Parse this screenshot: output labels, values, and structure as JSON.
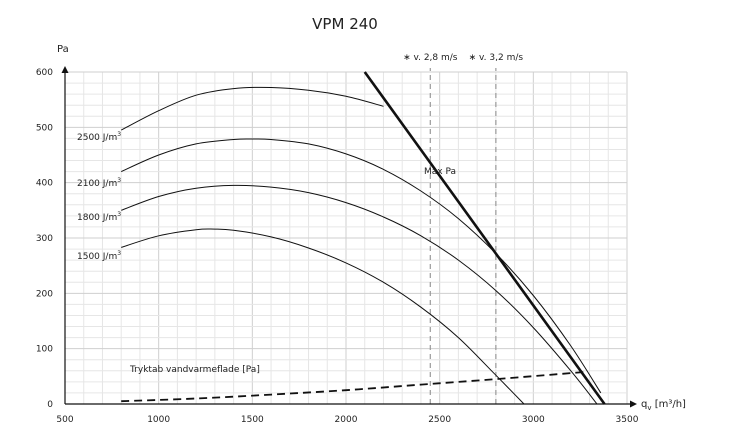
{
  "chart_data": {
    "type": "line",
    "title": "VPM 240",
    "xlabel": "q",
    "xlabel_sub": "v",
    "xlabel_unit": " [m³/h]",
    "ylabel": "Pa",
    "xlim": [
      500,
      3500
    ],
    "ylim": [
      0,
      600
    ],
    "x_ticks": [
      500,
      1000,
      1500,
      2000,
      2500,
      3000,
      3500
    ],
    "y_ticks": [
      0,
      100,
      200,
      300,
      400,
      500,
      600
    ],
    "grid": true,
    "series": [
      {
        "name": "2500 J/m³",
        "label": "2500 J/m",
        "label_sup": "3",
        "style": "thin",
        "x": [
          800,
          1000,
          1200,
          1400,
          1600,
          1800,
          2000,
          2200
        ],
        "y": [
          495,
          530,
          558,
          570,
          572,
          567,
          556,
          538
        ]
      },
      {
        "name": "2100 J/m³",
        "label": "2100 J/m",
        "label_sup": "3",
        "style": "thin",
        "x": [
          800,
          1000,
          1200,
          1400,
          1500,
          1600,
          1800,
          2000,
          2200,
          2400,
          2600,
          2800,
          3000,
          3200,
          3360
        ],
        "y": [
          420,
          450,
          470,
          478,
          479,
          478,
          470,
          452,
          424,
          385,
          335,
          272,
          196,
          105,
          20
        ]
      },
      {
        "name": "1800 J/m³",
        "label": "1800 J/m",
        "label_sup": "3",
        "style": "thin",
        "x": [
          800,
          1000,
          1200,
          1400,
          1600,
          1800,
          2000,
          2200,
          2400,
          2600,
          2800,
          3000,
          3200,
          3340
        ],
        "y": [
          350,
          375,
          390,
          395,
          392,
          382,
          364,
          338,
          304,
          260,
          205,
          138,
          60,
          0
        ]
      },
      {
        "name": "1500 J/m³",
        "label": "1500 J/m",
        "label_sup": "3",
        "style": "thin",
        "x": [
          800,
          1000,
          1200,
          1300,
          1400,
          1600,
          1800,
          2000,
          2200,
          2400,
          2600,
          2800,
          2950
        ],
        "y": [
          283,
          304,
          315,
          316,
          314,
          302,
          282,
          255,
          220,
          175,
          120,
          52,
          0
        ]
      },
      {
        "name": "Max Pa",
        "label": "Max Pa",
        "style": "bold",
        "x": [
          2100,
          3380
        ],
        "y": [
          600,
          0
        ]
      },
      {
        "name": "Tryktab vandvarmeflade [Pa]",
        "label": "Tryktab vandvarmeflade [Pa]",
        "style": "dashed",
        "x": [
          800,
          1200,
          1600,
          2000,
          2400,
          2800,
          3280
        ],
        "y": [
          5,
          10,
          17,
          25,
          35,
          45,
          58
        ]
      }
    ],
    "reference_lines": [
      {
        "label": "∗ v. 2,8 m/s",
        "x": 2450
      },
      {
        "label": "∗ v. 3,2 m/s",
        "x": 2800
      }
    ]
  }
}
